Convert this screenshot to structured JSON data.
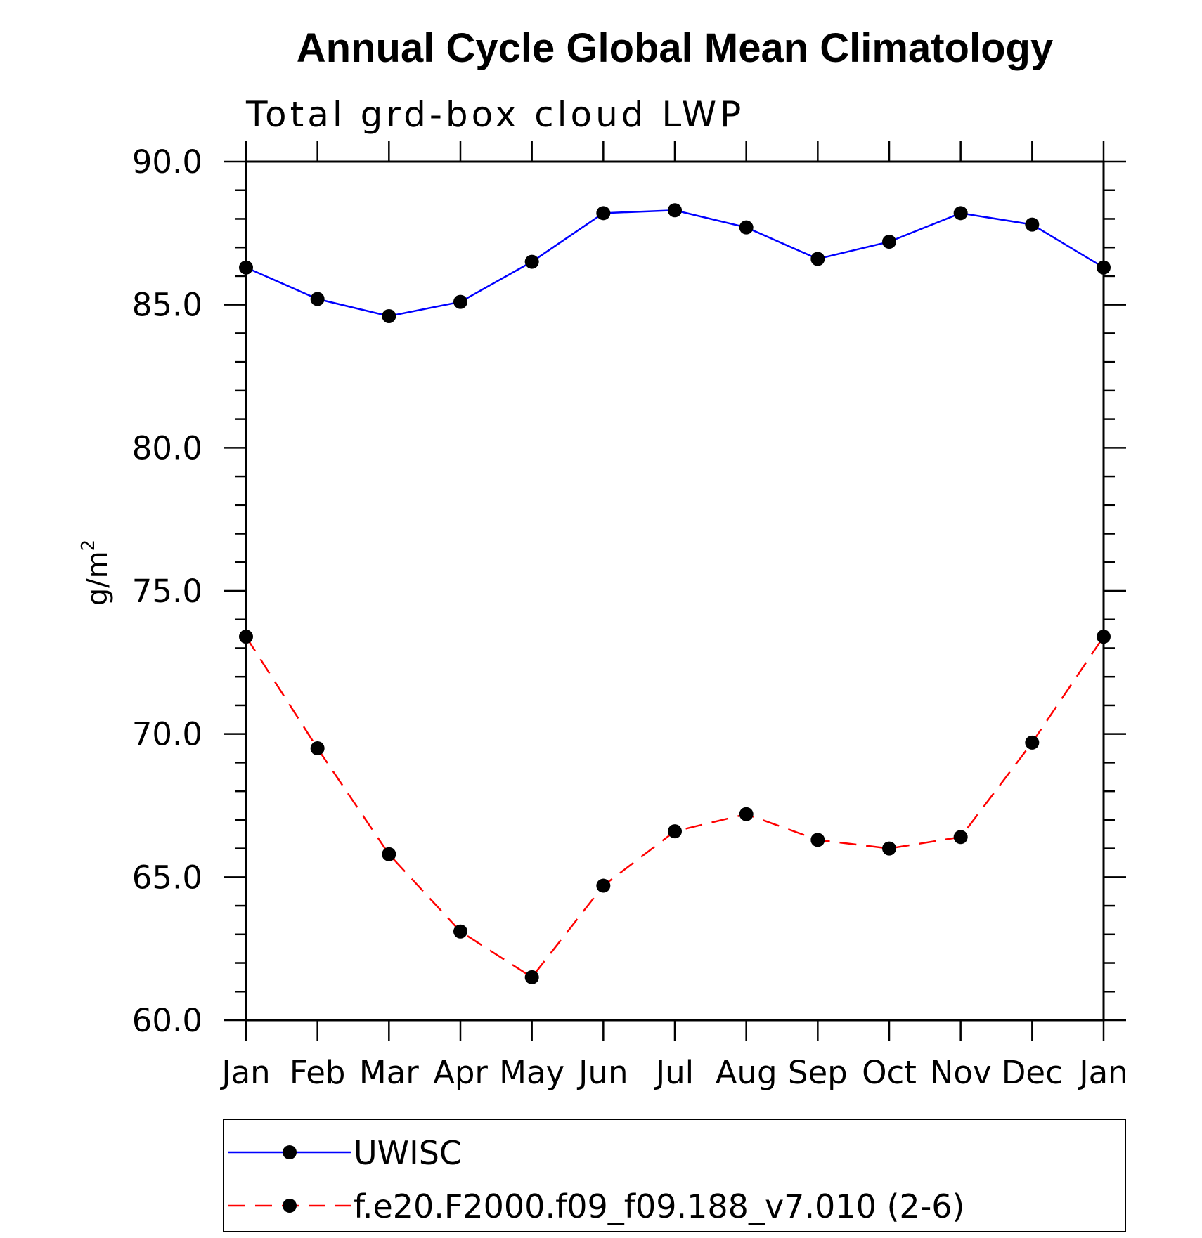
{
  "chart_data": {
    "type": "line",
    "title": "Annual Cycle Global Mean Climatology",
    "subtitle": "Total grd-box cloud LWP",
    "ylabel": "g/m",
    "ylabel_superscript": "2",
    "ylim": [
      60,
      90
    ],
    "yticks": [
      60,
      65,
      70,
      75,
      80,
      85,
      90
    ],
    "ytick_labels": [
      "60.0",
      "65.0",
      "70.0",
      "75.0",
      "80.0",
      "85.0",
      "90.0"
    ],
    "categories": [
      "Jan",
      "Feb",
      "Mar",
      "Apr",
      "May",
      "Jun",
      "Jul",
      "Aug",
      "Sep",
      "Oct",
      "Nov",
      "Dec",
      "Jan"
    ],
    "grid": false,
    "legend_position": "bottom",
    "series": [
      {
        "name": "UWISC",
        "color": "#0000ff",
        "line_style": "solid",
        "marker": "filled-circle",
        "marker_color": "#000000",
        "values": [
          86.3,
          85.2,
          84.6,
          85.1,
          86.5,
          88.2,
          88.3,
          87.7,
          86.6,
          87.2,
          88.2,
          87.8,
          86.3
        ]
      },
      {
        "name": "f.e20.F2000.f09_f09.188_v7.010 (2-6)",
        "color": "#ff0000",
        "line_style": "dashed",
        "marker": "filled-circle",
        "marker_color": "#000000",
        "values": [
          73.4,
          69.5,
          65.8,
          63.1,
          61.5,
          64.7,
          66.6,
          67.2,
          66.3,
          66.0,
          66.4,
          69.7,
          73.4
        ]
      }
    ]
  }
}
